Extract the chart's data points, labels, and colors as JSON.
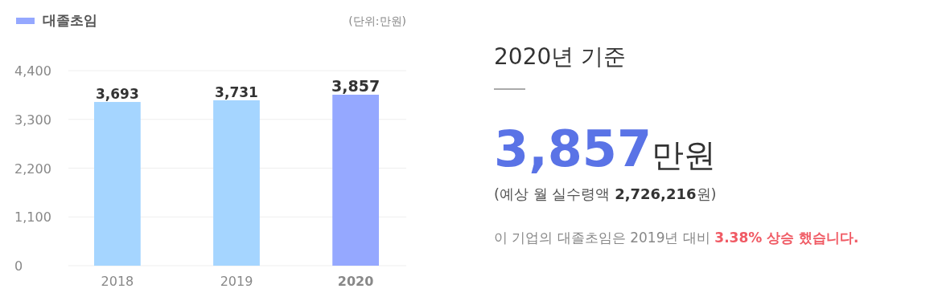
{
  "chart_data": [
    {
      "type": "bar",
      "categories": [
        "2018",
        "2019",
        "2020"
      ],
      "series": [
        {
          "name": "대졸초임",
          "color": "#95a8ff",
          "colors": [
            "#a5d5ff",
            "#a5d5ff",
            "#95a8ff"
          ],
          "values": [
            3693,
            3731,
            3857
          ],
          "value_labels": [
            "3,693",
            "3,731",
            "3,857"
          ]
        }
      ],
      "ylim": [
        0,
        4400
      ],
      "yticks": [
        0,
        {
          "value": 1100,
          "label": "1,100"
        },
        {
          "value": 2200,
          "label": "2,200"
        },
        {
          "value": 3300,
          "label": "3,300"
        },
        {
          "value": 4400,
          "label": "4,400"
        }
      ],
      "grid": "y",
      "legend": "top left",
      "annotations": [
        "(단위:만원)"
      ]
    },
    {
      "type": "other",
      "title": "2020년 기준",
      "annotations": [
        "3,857",
        "만원",
        "(예상 월 실수령액 ",
        "2,726,216",
        "원)",
        "이 기업의 대졸초임은 2019년 대비 ",
        "3.38% 상승 했습니다."
      ]
    }
  ]
}
